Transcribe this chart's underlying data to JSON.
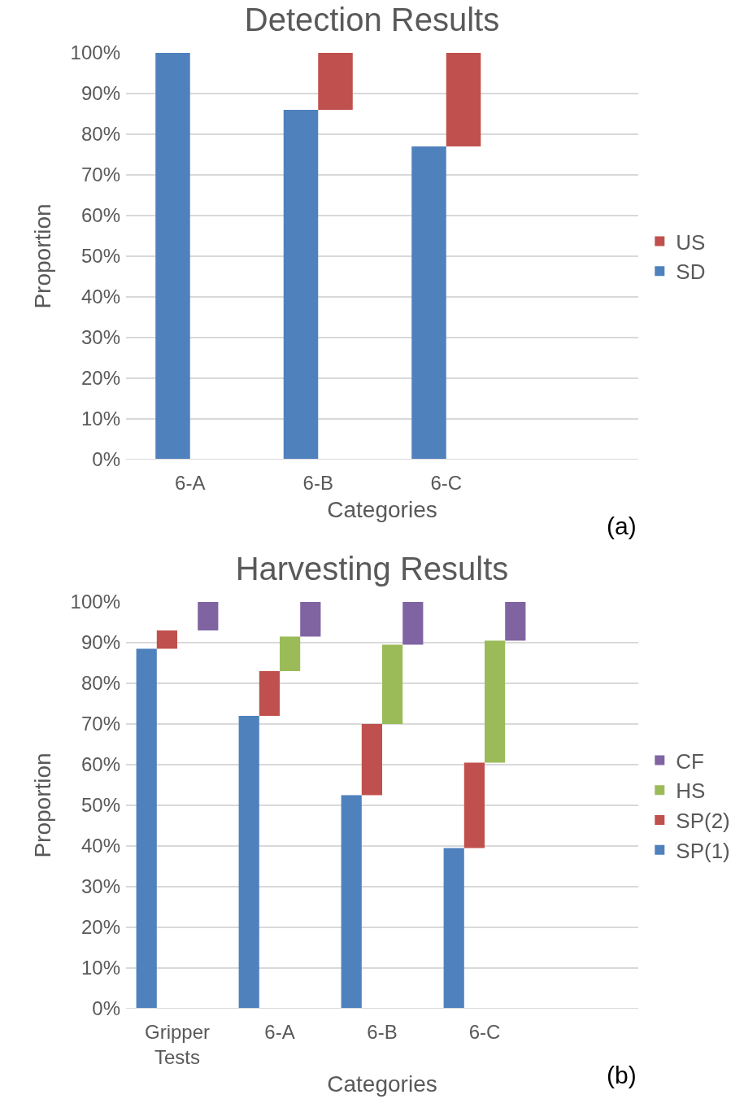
{
  "chart_data": [
    {
      "type": "bar",
      "title": "Detection Results",
      "xlabel": "Categories",
      "ylabel": "Proportion",
      "categories": [
        "6-A",
        "6-B",
        "6-C",
        null
      ],
      "series": [
        {
          "name": "SD",
          "color": "#4f81bd",
          "values": [
            100,
            86,
            77,
            null
          ]
        },
        {
          "name": "US",
          "color": "#c0504d",
          "values": [
            null,
            14,
            23,
            null
          ],
          "base": [
            null,
            86,
            77,
            null
          ]
        }
      ],
      "ylim": [
        0,
        100
      ],
      "yticks": [
        {
          "value": 0,
          "label": "0%"
        },
        {
          "value": 10,
          "label": "10%"
        },
        {
          "value": 20,
          "label": "20%"
        },
        {
          "value": 30,
          "label": "30%"
        },
        {
          "value": 40,
          "label": "40%"
        },
        {
          "value": 50,
          "label": "50%"
        },
        {
          "value": 60,
          "label": "60%"
        },
        {
          "value": 70,
          "label": "70%"
        },
        {
          "value": 80,
          "label": "80%"
        },
        {
          "value": 90,
          "label": "90%"
        },
        {
          "value": 100,
          "label": "100%"
        }
      ],
      "grid": "y",
      "legend": "right",
      "annotations": [
        "(a)"
      ]
    },
    {
      "type": "bar",
      "title": "Harvesting Results",
      "xlabel": "Categories",
      "ylabel": "Proportion",
      "categories": [
        "Gripper\nTests",
        "6-A",
        "6-B",
        "6-C",
        null
      ],
      "series": [
        {
          "name": "SP(1)",
          "color": "#4f81bd",
          "values": [
            88.5,
            72,
            52.5,
            39.5,
            null
          ]
        },
        {
          "name": "SP(2)",
          "color": "#c0504d",
          "values": [
            4.5,
            11,
            17.5,
            21,
            null
          ],
          "base": [
            88.5,
            72,
            52.5,
            39.5,
            null
          ]
        },
        {
          "name": "HS",
          "color": "#9bbb59",
          "values": [
            null,
            8.5,
            19.5,
            30,
            null
          ],
          "base": [
            null,
            83,
            70,
            60.5,
            null
          ]
        },
        {
          "name": "CF",
          "color": "#8064a2",
          "values": [
            7,
            8.5,
            10.5,
            9.5,
            null
          ],
          "base": [
            93,
            91.5,
            89.5,
            90.5,
            null
          ]
        }
      ],
      "ylim": [
        0,
        100
      ],
      "yticks": [
        {
          "value": 0,
          "label": "0%"
        },
        {
          "value": 10,
          "label": "10%"
        },
        {
          "value": 20,
          "label": "20%"
        },
        {
          "value": 30,
          "label": "30%"
        },
        {
          "value": 40,
          "label": "40%"
        },
        {
          "value": 50,
          "label": "50%"
        },
        {
          "value": 60,
          "label": "60%"
        },
        {
          "value": 70,
          "label": "70%"
        },
        {
          "value": 80,
          "label": "80%"
        },
        {
          "value": 90,
          "label": "90%"
        },
        {
          "value": 100,
          "label": "100%"
        }
      ],
      "grid": "y",
      "legend": "right",
      "annotations": [
        "(b)"
      ]
    }
  ]
}
